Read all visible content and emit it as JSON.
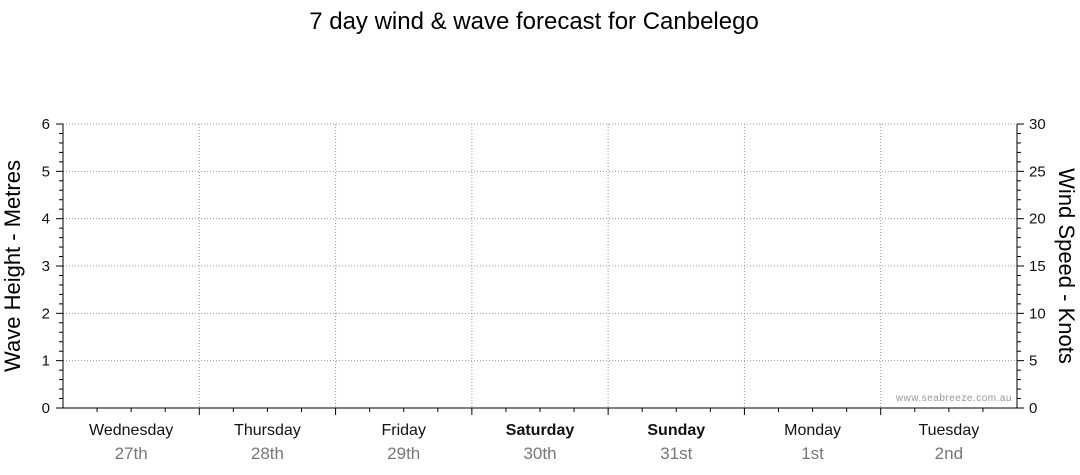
{
  "chart_data": {
    "type": "line",
    "title": "7 day wind & wave forecast for Canbelego",
    "ylabel": "Wave Height - Metres",
    "ylabel_right": "Wind Speed - Knots",
    "ylim": [
      0,
      6
    ],
    "ylim_right": [
      0,
      30
    ],
    "yticks": [
      "0",
      "1",
      "2",
      "3",
      "4",
      "5",
      "6"
    ],
    "yticks_right": [
      "0",
      "5",
      "10",
      "15",
      "20",
      "25",
      "30"
    ],
    "days": [
      {
        "name": "Wednesday",
        "date": "27th",
        "bold": false
      },
      {
        "name": "Thursday",
        "date": "28th",
        "bold": false
      },
      {
        "name": "Friday",
        "date": "29th",
        "bold": false
      },
      {
        "name": "Saturday",
        "date": "30th",
        "bold": true
      },
      {
        "name": "Sunday",
        "date": "31st",
        "bold": true
      },
      {
        "name": "Monday",
        "date": "1st",
        "bold": false
      },
      {
        "name": "Tuesday",
        "date": "2nd",
        "bold": false
      }
    ],
    "series": [],
    "grid": true,
    "credit": "www.seabreeze.com.au"
  }
}
